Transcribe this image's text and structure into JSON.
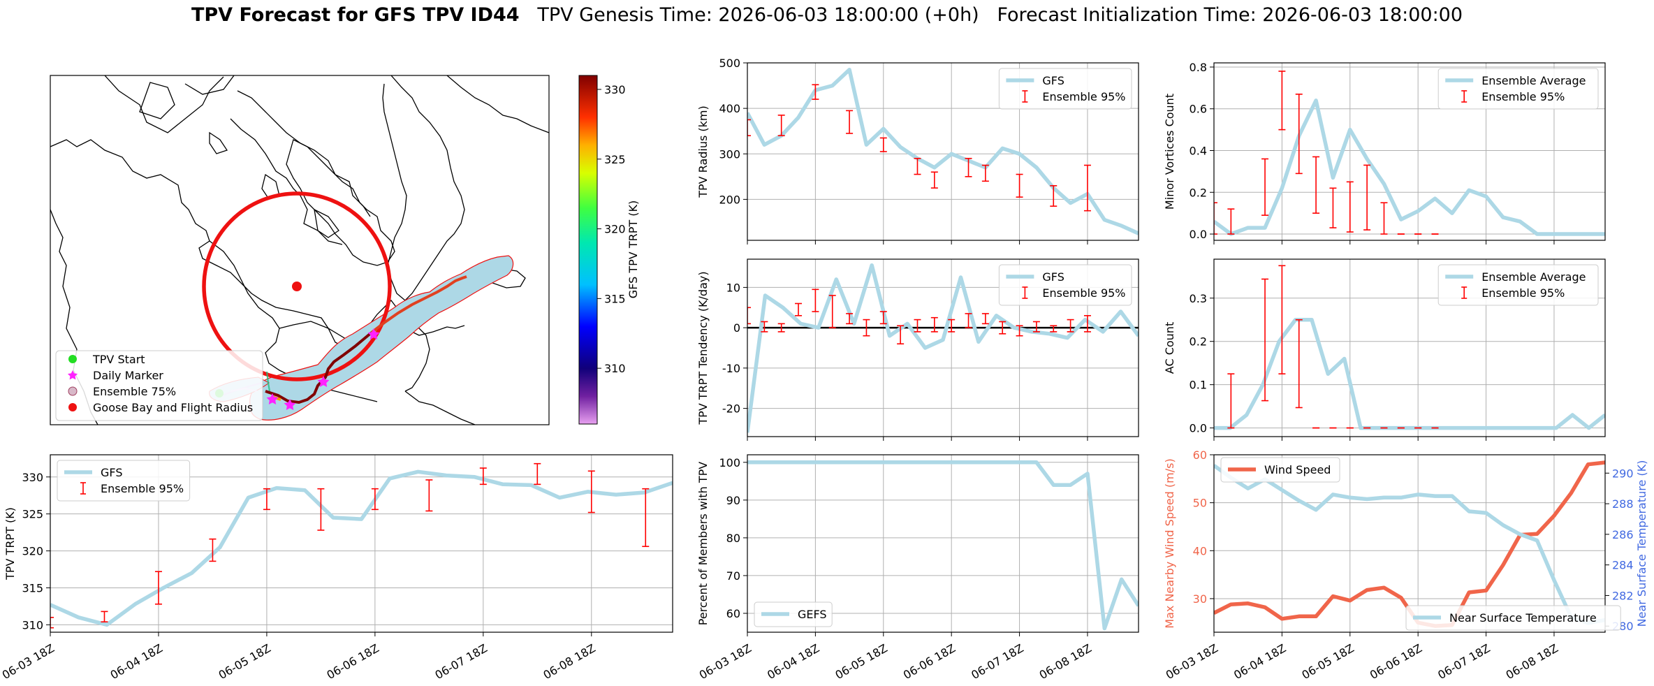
{
  "header": {
    "title_bold": "TPV Forecast for GFS TPV ID44",
    "title_rest": "   TPV Genesis Time: 2026-06-03 18:00:00 (+0h)   Forecast Initialization Time: 2026-06-03 18:00:00"
  },
  "map": {
    "legend": [
      "TPV Start",
      "Daily Marker",
      "Ensemble 75%",
      "Goose Bay and Flight Radius"
    ],
    "legend_colors": [
      "#22dd22",
      "#ff22ff",
      "#d8b8c8",
      "#ee1111"
    ],
    "circle_color": "#ee1111",
    "track_color": "#e04020",
    "ensemble_fill": "#add8e6",
    "colorbar": {
      "label": "GFS TPV TRPT (K)",
      "ticks": [
        310,
        315,
        320,
        325,
        330
      ],
      "range": [
        306,
        331
      ],
      "colormap": "rainbow"
    }
  },
  "chart_data": [
    {
      "type": "line",
      "panel": "trpt",
      "ylabel": "TPV TRPT (K)",
      "ylim": [
        309,
        333
      ],
      "yticks": [
        310,
        315,
        320,
        325,
        330
      ],
      "x_hours": [
        0,
        6,
        12,
        18,
        24,
        30,
        36,
        42,
        48,
        54,
        60,
        66,
        72,
        78,
        84,
        90,
        96,
        102,
        108,
        114,
        120,
        126,
        132,
        138,
        144,
        150,
        156,
        162,
        168,
        174,
        180
      ],
      "series": [
        {
          "name": "GFS",
          "color": "#add8e6",
          "values": [
            312.7,
            311.0,
            310.0,
            312.8,
            315.0,
            317.0,
            320.5,
            327.2,
            328.5,
            328.2,
            324.5,
            324.3,
            329.8,
            330.7,
            330.2,
            330.0,
            329.0,
            328.9,
            327.2,
            328.0,
            327.6,
            327.9,
            329.2
          ]
        },
        {
          "name": "Ensemble 95%",
          "color": "#ff0000",
          "type": "errorbar",
          "points": [
            [
              0,
              309.6,
              311.0
            ],
            [
              12,
              310.4,
              311.8
            ],
            [
              24,
              312.8,
              317.2
            ],
            [
              36,
              318.6,
              321.6
            ],
            [
              48,
              325.6,
              328.4
            ],
            [
              60,
              322.8,
              328.4
            ],
            [
              72,
              325.6,
              328.4
            ],
            [
              84,
              325.4,
              329.6
            ],
            [
              96,
              329.0,
              331.2
            ],
            [
              108,
              329.0,
              331.8
            ],
            [
              120,
              325.2,
              330.8
            ],
            [
              132,
              320.6,
              328.4
            ]
          ]
        }
      ]
    },
    {
      "type": "line",
      "panel": "radius",
      "ylabel": "TPV Radius (km)",
      "ylim": [
        110,
        500
      ],
      "yticks": [
        200,
        300,
        400,
        500
      ],
      "series": [
        {
          "name": "GFS",
          "color": "#add8e6",
          "values": [
            390,
            320,
            340,
            380,
            440,
            450,
            485,
            320,
            355,
            315,
            290,
            270,
            300,
            285,
            270,
            312,
            300,
            270,
            225,
            192,
            212,
            155,
            142,
            125
          ]
        },
        {
          "name": "Ensemble 95%",
          "color": "#ff0000",
          "type": "errorbar",
          "points": [
            [
              0,
              340,
              375
            ],
            [
              12,
              340,
              385
            ],
            [
              24,
              420,
              452
            ],
            [
              36,
              345,
              395
            ],
            [
              48,
              305,
              335
            ],
            [
              60,
              255,
              290
            ],
            [
              66,
              225,
              260
            ],
            [
              78,
              250,
              290
            ],
            [
              84,
              240,
              275
            ],
            [
              96,
              205,
              255
            ],
            [
              108,
              185,
              230
            ],
            [
              120,
              175,
              275
            ]
          ]
        }
      ]
    },
    {
      "type": "line",
      "panel": "tendency",
      "ylabel": "TPV TRPT Tendency (K/day)",
      "ylim": [
        -27,
        17
      ],
      "yticks": [
        -20,
        -10,
        0,
        10
      ],
      "zero_line": true,
      "series": [
        {
          "name": "GFS",
          "color": "#add8e6",
          "values": [
            -26,
            8,
            5,
            1,
            0,
            12,
            1,
            15.5,
            -2,
            1,
            -5,
            -3,
            12.5,
            -3.5,
            3,
            0,
            -1,
            -1.5,
            -2.5,
            2,
            -1,
            4,
            -2
          ]
        },
        {
          "name": "Ensemble 95%",
          "color": "#ff0000",
          "type": "errorbar",
          "points": [
            [
              0,
              1,
              5
            ],
            [
              6,
              -1,
              1.5
            ],
            [
              12,
              -1,
              1
            ],
            [
              18,
              3,
              6
            ],
            [
              24,
              4,
              9.5
            ],
            [
              30,
              0,
              8
            ],
            [
              36,
              1,
              3.5
            ],
            [
              42,
              -2,
              2
            ],
            [
              48,
              1,
              4
            ],
            [
              54,
              -4,
              0.5
            ],
            [
              60,
              -1,
              2
            ],
            [
              66,
              -1,
              2.5
            ],
            [
              72,
              -1,
              2
            ],
            [
              78,
              0,
              3.5
            ],
            [
              84,
              1,
              3.5
            ],
            [
              90,
              -1.5,
              1.5
            ],
            [
              96,
              -2,
              0.5
            ],
            [
              102,
              -1,
              1.5
            ],
            [
              108,
              -1,
              0.5
            ],
            [
              114,
              -1,
              2
            ],
            [
              120,
              -1,
              3
            ]
          ]
        }
      ]
    },
    {
      "type": "line",
      "panel": "members",
      "ylabel": "Percent of Members with TPV",
      "ylim": [
        55,
        102
      ],
      "yticks": [
        60,
        70,
        80,
        90,
        100
      ],
      "series": [
        {
          "name": "GEFS",
          "color": "#add8e6",
          "values": [
            100,
            100,
            100,
            100,
            100,
            100,
            100,
            100,
            100,
            100,
            100,
            100,
            100,
            100,
            100,
            100,
            100,
            100,
            94,
            94,
            97,
            56,
            69,
            62
          ]
        }
      ]
    },
    {
      "type": "line",
      "panel": "minor",
      "ylabel": "Minor Vortices Count",
      "ylim": [
        -0.03,
        0.82
      ],
      "yticks": [
        0.0,
        0.2,
        0.4,
        0.6,
        0.8
      ],
      "series": [
        {
          "name": "Ensemble Average",
          "color": "#add8e6",
          "values": [
            0.06,
            0.0,
            0.03,
            0.03,
            0.22,
            0.47,
            0.64,
            0.27,
            0.5,
            0.36,
            0.24,
            0.07,
            0.11,
            0.17,
            0.1,
            0.21,
            0.18,
            0.08,
            0.06,
            0.0,
            0.0,
            0.0,
            0.0,
            0.0
          ]
        },
        {
          "name": "Ensemble 95%",
          "color": "#ff0000",
          "type": "errorbar",
          "points": [
            [
              0,
              0.0,
              0.15
            ],
            [
              6,
              0.0,
              0.12
            ],
            [
              18,
              0.09,
              0.36
            ],
            [
              24,
              0.5,
              0.78
            ],
            [
              30,
              0.29,
              0.67
            ],
            [
              36,
              0.1,
              0.37
            ],
            [
              42,
              0.03,
              0.22
            ],
            [
              48,
              0.01,
              0.25
            ],
            [
              54,
              0.02,
              0.33
            ],
            [
              60,
              0.0,
              0.15
            ],
            [
              66,
              0.0,
              0.0
            ],
            [
              72,
              0.0,
              0.0
            ],
            [
              78,
              0.0,
              0.0
            ]
          ]
        }
      ]
    },
    {
      "type": "line",
      "panel": "ac",
      "ylabel": "AC Count",
      "ylim": [
        -0.02,
        0.39
      ],
      "yticks": [
        0.0,
        0.1,
        0.2,
        0.3
      ],
      "series": [
        {
          "name": "Ensemble Average",
          "color": "#add8e6",
          "values": [
            0.0,
            0.0,
            0.03,
            0.1,
            0.2,
            0.25,
            0.25,
            0.125,
            0.16,
            0.0,
            0.0,
            0.0,
            0.0,
            0.0,
            0.0,
            0.0,
            0.0,
            0.0,
            0.0,
            0.0,
            0.0,
            0.0,
            0.03,
            0.0,
            0.03
          ]
        },
        {
          "name": "Ensemble 95%",
          "color": "#ff0000",
          "type": "errorbar",
          "points": [
            [
              6,
              0.0,
              0.125
            ],
            [
              18,
              0.063,
              0.344
            ],
            [
              24,
              0.125,
              0.375
            ],
            [
              30,
              0.047,
              0.25
            ],
            [
              36,
              0.0,
              0.0
            ],
            [
              42,
              0.0,
              0.0
            ],
            [
              48,
              0.0,
              0.0
            ],
            [
              54,
              0.0,
              0.0
            ],
            [
              60,
              0.0,
              0.0
            ],
            [
              66,
              0.0,
              0.0
            ],
            [
              72,
              0.0,
              0.0
            ],
            [
              78,
              0.0,
              0.0
            ]
          ]
        }
      ]
    },
    {
      "type": "line",
      "panel": "wind",
      "ylabel": "Max Nearby Wind Speed (m/s)",
      "ylabel2": "Near Surface Temperature (K)",
      "ylim": [
        23,
        60
      ],
      "yticks": [
        30,
        40,
        50,
        60
      ],
      "ylim2": [
        279.6,
        291.2
      ],
      "yticks2": [
        280,
        282,
        284,
        286,
        288,
        290
      ],
      "series": [
        {
          "name": "Wind Speed",
          "color": "#f0654a",
          "axis": "left",
          "values": [
            27,
            28.8,
            29,
            28.2,
            25.8,
            26.3,
            26.3,
            30.5,
            29.6,
            31.8,
            32.3,
            30.2,
            25,
            24.3,
            24.5,
            31.3,
            31.7,
            37,
            43.3,
            43.5,
            47.3,
            52,
            58,
            58.4
          ]
        },
        {
          "name": "Near Surface Temperature",
          "color": "#add8e6",
          "axis": "right",
          "values": [
            290.5,
            289.7,
            289.0,
            289.6,
            288.9,
            288.2,
            287.6,
            288.6,
            288.4,
            288.3,
            288.4,
            288.4,
            288.6,
            288.5,
            288.5,
            287.5,
            287.4,
            286.6,
            286.0,
            285.6,
            283.0,
            280.6,
            280.2,
            280.4
          ]
        }
      ]
    }
  ],
  "x_tick_labels": [
    "06-03 18Z",
    "06-04 18Z",
    "06-05 18Z",
    "06-06 18Z",
    "06-07 18Z",
    "06-08 18Z"
  ]
}
